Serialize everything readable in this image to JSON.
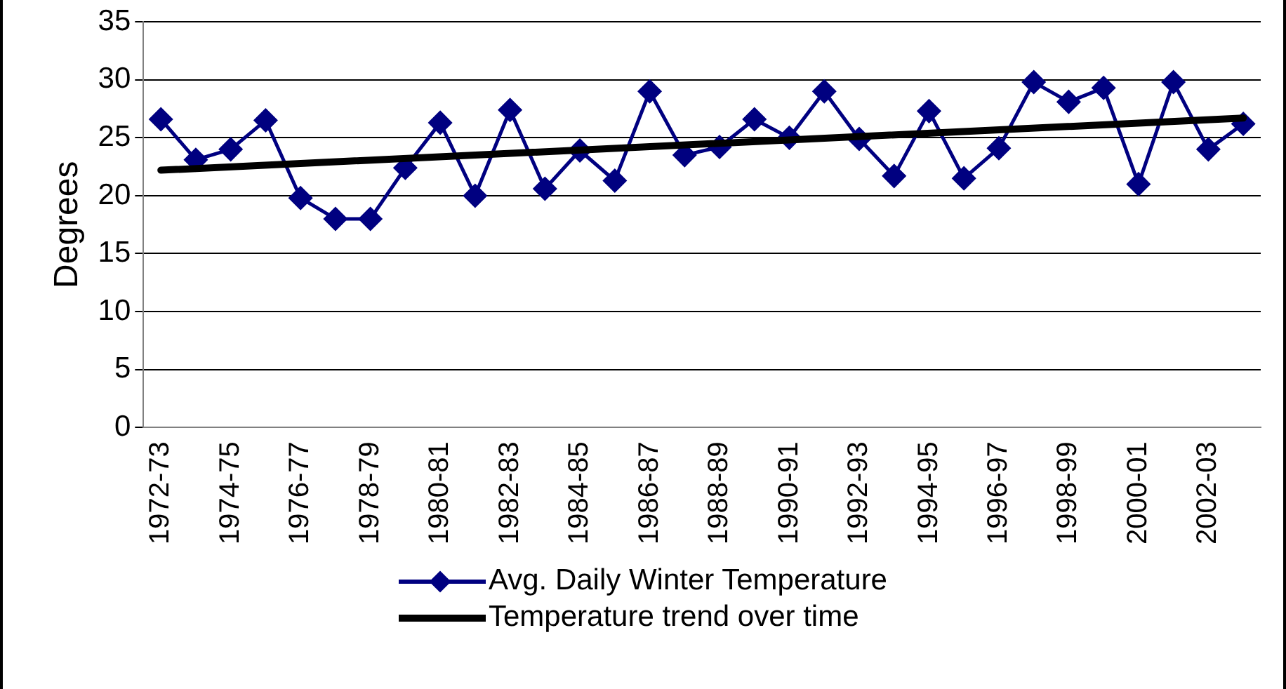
{
  "chart_data": {
    "type": "line",
    "ylabel": "Degrees",
    "categories": [
      "1972-73",
      null,
      "1974-75",
      null,
      "1976-77",
      null,
      "1978-79",
      null,
      "1980-81",
      null,
      "1982-83",
      null,
      "1984-85",
      null,
      "1986-87",
      null,
      "1988-89",
      null,
      "1990-91",
      null,
      "1992-93",
      null,
      "1994-95",
      null,
      "1996-97",
      null,
      "1998-99",
      null,
      "2000-01",
      null,
      "2002-03",
      null
    ],
    "series": [
      {
        "name": "Avg. Daily Winter Temperature",
        "color": "#000080",
        "marker": "diamond",
        "values": [
          26.6,
          23.1,
          24.0,
          26.5,
          19.8,
          18.0,
          18.0,
          22.4,
          26.3,
          20.0,
          27.4,
          20.6,
          23.9,
          21.3,
          29.0,
          23.5,
          24.2,
          26.6,
          25.0,
          29.0,
          24.9,
          21.7,
          27.3,
          21.5,
          24.1,
          29.8,
          28.1,
          29.3,
          21.0,
          29.8,
          24.0,
          26.2
        ]
      },
      {
        "name": "Temperature trend over time",
        "color": "#000000",
        "marker": "none",
        "values": [
          22.2,
          null,
          null,
          null,
          null,
          null,
          null,
          null,
          null,
          null,
          null,
          null,
          null,
          null,
          null,
          null,
          null,
          null,
          null,
          null,
          null,
          null,
          null,
          null,
          null,
          null,
          null,
          null,
          null,
          null,
          null,
          26.7
        ]
      }
    ],
    "ylim": [
      0,
      35
    ],
    "yticks": [
      0,
      5,
      10,
      15,
      20,
      25,
      30,
      35
    ],
    "grid": "y",
    "legend": "bottom",
    "line_style": "solid"
  }
}
